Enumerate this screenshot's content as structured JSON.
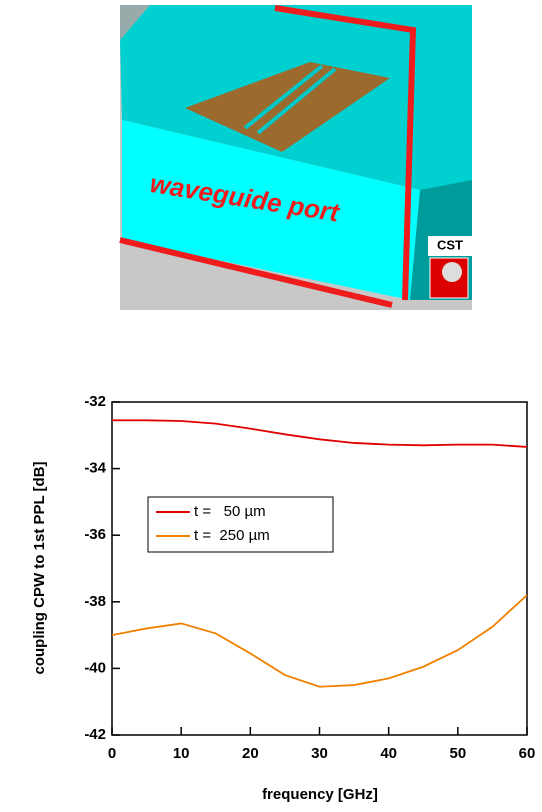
{
  "figure": {
    "label": "waveguide port",
    "logo": "CST"
  },
  "chart_data": {
    "type": "line",
    "xlabel": "frequency [GHz]",
    "ylabel": "coupling CPW to 1st PPL [dB]",
    "x": [
      0,
      5,
      10,
      15,
      20,
      25,
      30,
      35,
      40,
      45,
      50,
      55,
      60
    ],
    "series": [
      {
        "name": "t =   50 µm",
        "color": "#e00000",
        "values": [
          -32.55,
          -32.55,
          -32.57,
          -32.65,
          -32.8,
          -32.97,
          -33.12,
          -33.23,
          -33.28,
          -33.3,
          -33.28,
          -33.28,
          -33.35
        ]
      },
      {
        "name": "t =  250 µm",
        "color": "#f08000",
        "values": [
          -39.0,
          -38.8,
          -38.65,
          -38.95,
          -39.55,
          -40.2,
          -40.55,
          -40.5,
          -40.3,
          -39.95,
          -39.45,
          -38.75,
          -37.8
        ]
      }
    ],
    "xlim": [
      0,
      60
    ],
    "xticks": [
      0,
      10,
      20,
      30,
      40,
      50,
      60
    ],
    "ylim": [
      -42,
      -32
    ],
    "yticks": [
      -42,
      -40,
      -38,
      -36,
      -34,
      -32
    ],
    "legend": "upper-left"
  }
}
